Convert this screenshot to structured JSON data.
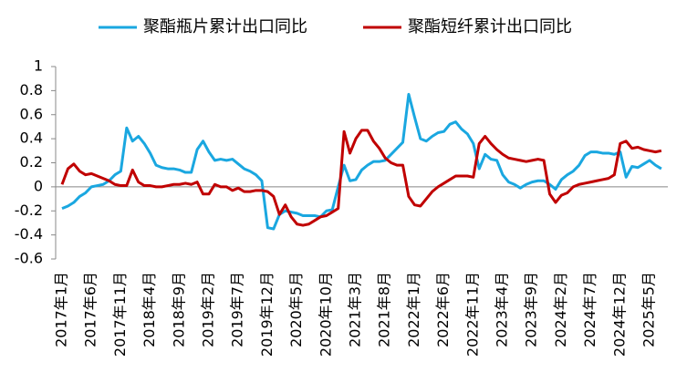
{
  "chart_data": {
    "type": "line",
    "categories": [
      "2017年1月",
      null,
      null,
      null,
      null,
      "2017年6月",
      null,
      null,
      null,
      null,
      "2017年11月",
      null,
      null,
      null,
      null,
      "2018年4月",
      null,
      null,
      null,
      null,
      "2018年9月",
      null,
      null,
      null,
      null,
      "2019年2月",
      null,
      null,
      null,
      null,
      "2019年7月",
      null,
      null,
      null,
      null,
      "2019年12月",
      null,
      null,
      null,
      null,
      "2020年5月",
      null,
      null,
      null,
      null,
      "2020年10月",
      null,
      null,
      null,
      null,
      "2021年3月",
      null,
      null,
      null,
      null,
      "2021年8月",
      null,
      null,
      null,
      null,
      "2022年1月",
      null,
      null,
      null,
      null,
      "2022年6月",
      null,
      null,
      null,
      null,
      "2022年11月",
      null,
      null,
      null,
      null,
      "2023年4月",
      null,
      null,
      null,
      null,
      "2023年9月",
      null,
      null,
      null,
      null,
      "2024年2月",
      null,
      null,
      null,
      null,
      "2024年7月",
      null,
      null,
      null,
      null,
      "2024年12月",
      null,
      null,
      null,
      null,
      "2025年5月",
      null,
      null
    ],
    "series": [
      {
        "name": "聚酯瓶片累计出口同比",
        "color": "#1aa7e0",
        "values": [
          -0.18,
          -0.16,
          -0.13,
          -0.08,
          -0.05,
          0.0,
          0.01,
          0.02,
          0.05,
          0.1,
          0.13,
          0.49,
          0.38,
          0.42,
          0.36,
          0.28,
          0.18,
          0.16,
          0.15,
          0.15,
          0.14,
          0.12,
          0.12,
          0.31,
          0.38,
          0.29,
          0.22,
          0.23,
          0.22,
          0.23,
          0.19,
          0.15,
          0.13,
          0.1,
          0.05,
          -0.34,
          -0.35,
          -0.23,
          -0.2,
          -0.21,
          -0.22,
          -0.24,
          -0.24,
          -0.24,
          -0.25,
          -0.2,
          -0.19,
          0.0,
          0.18,
          0.05,
          0.06,
          0.14,
          0.18,
          0.21,
          0.21,
          0.22,
          0.27,
          0.32,
          0.37,
          0.77,
          0.58,
          0.4,
          0.38,
          0.42,
          0.45,
          0.46,
          0.52,
          0.54,
          0.48,
          0.44,
          0.36,
          0.15,
          0.27,
          0.23,
          0.22,
          0.1,
          0.04,
          0.02,
          -0.01,
          0.02,
          0.04,
          0.05,
          0.05,
          0.02,
          -0.02,
          0.06,
          0.1,
          0.13,
          0.18,
          0.26,
          0.29,
          0.29,
          0.28,
          0.28,
          0.27,
          0.29,
          0.08,
          0.17,
          0.16,
          0.19,
          0.22,
          0.18,
          0.15
        ]
      },
      {
        "name": "聚酯短纤累计出口同比",
        "color": "#c00000",
        "values": [
          0.02,
          0.15,
          0.19,
          0.13,
          0.1,
          0.11,
          0.09,
          0.07,
          0.05,
          0.02,
          0.01,
          0.01,
          0.14,
          0.04,
          0.01,
          0.01,
          0.0,
          0.0,
          0.01,
          0.02,
          0.02,
          0.03,
          0.02,
          0.04,
          -0.06,
          -0.06,
          0.02,
          0.0,
          0.0,
          -0.03,
          -0.01,
          -0.04,
          -0.04,
          -0.03,
          -0.03,
          -0.04,
          -0.08,
          -0.23,
          -0.15,
          -0.25,
          -0.31,
          -0.32,
          -0.31,
          -0.28,
          -0.25,
          -0.24,
          -0.21,
          -0.18,
          0.46,
          0.28,
          0.4,
          0.47,
          0.47,
          0.38,
          0.32,
          0.24,
          0.2,
          0.18,
          0.18,
          -0.08,
          -0.15,
          -0.16,
          -0.1,
          -0.04,
          0.0,
          0.03,
          0.06,
          0.09,
          0.09,
          0.09,
          0.08,
          0.36,
          0.42,
          0.36,
          0.31,
          0.27,
          0.24,
          0.23,
          0.22,
          0.21,
          0.22,
          0.23,
          0.22,
          -0.06,
          -0.13,
          -0.07,
          -0.05,
          0.0,
          0.02,
          0.03,
          0.04,
          0.05,
          0.06,
          0.07,
          0.1,
          0.36,
          0.38,
          0.32,
          0.33,
          0.31,
          0.3,
          0.29,
          0.3
        ]
      }
    ],
    "ylim": [
      -0.6,
      1
    ],
    "yticks": [
      1,
      0.8,
      0.6,
      0.4,
      0.2,
      0,
      -0.2,
      -0.4,
      -0.6
    ],
    "grid": false,
    "legend": "top"
  }
}
